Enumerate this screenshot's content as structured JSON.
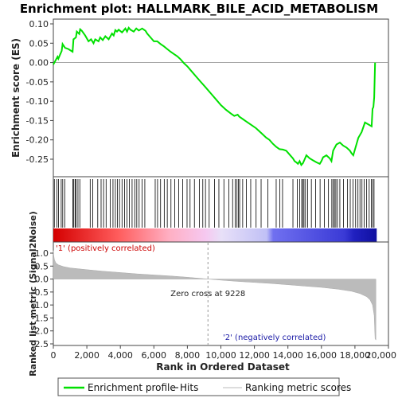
{
  "chart_data": {
    "type": "line",
    "title": "Enrichment plot: HALLMARK_BILE_ACID_METABOLISM",
    "es_panel": {
      "ylabel": "Enrichment score (ES)",
      "ylim": [
        -0.3,
        0.1
      ],
      "yticks": [
        "0.10",
        "0.05",
        "0.00",
        "-0.05",
        "-0.10",
        "-0.15",
        "-0.20",
        "-0.25"
      ],
      "ytick_values": [
        0.1,
        0.05,
        0.0,
        -0.05,
        -0.1,
        -0.15,
        -0.2,
        -0.25
      ],
      "series": [
        {
          "name": "Enrichment profile",
          "color": "#00e000",
          "x": [
            0,
            250,
            300,
            500,
            550,
            700,
            900,
            1150,
            1200,
            1350,
            1400,
            1550,
            1600,
            1700,
            1900,
            2100,
            2250,
            2400,
            2500,
            2700,
            2800,
            2950,
            3100,
            3300,
            3500,
            3600,
            3700,
            3800,
            3900,
            4100,
            4300,
            4400,
            4500,
            4600,
            4800,
            4950,
            5100,
            5300,
            5500,
            5600,
            5800,
            6000,
            6200,
            6400,
            6600,
            6800,
            7000,
            7200,
            7400,
            7600,
            7800,
            8000,
            8200,
            8500,
            8800,
            9100,
            9400,
            9700,
            10000,
            10300,
            10600,
            10800,
            11000,
            11100,
            11300,
            11500,
            11700,
            11900,
            12100,
            12300,
            12500,
            12700,
            12900,
            13100,
            13300,
            13500,
            13700,
            13900,
            14100,
            14300,
            14400,
            14500,
            14600,
            14700,
            14800,
            14900,
            15000,
            15100,
            15300,
            15500,
            15700,
            15900,
            16000,
            16100,
            16300,
            16500,
            16600,
            16700,
            16800,
            16900,
            17100,
            17300,
            17500,
            17700,
            17800,
            17900,
            18100,
            18200,
            18400,
            18600,
            18800,
            19000,
            19050,
            19100,
            19150,
            19200
          ],
          "y": [
            -0.005,
            0.015,
            0.01,
            0.03,
            0.048,
            0.038,
            0.035,
            0.028,
            0.06,
            0.065,
            0.08,
            0.074,
            0.086,
            0.082,
            0.07,
            0.055,
            0.06,
            0.05,
            0.06,
            0.055,
            0.065,
            0.058,
            0.068,
            0.06,
            0.075,
            0.07,
            0.084,
            0.08,
            0.085,
            0.078,
            0.088,
            0.08,
            0.09,
            0.085,
            0.08,
            0.088,
            0.083,
            0.088,
            0.082,
            0.075,
            0.065,
            0.055,
            0.055,
            0.048,
            0.042,
            0.035,
            0.028,
            0.022,
            0.016,
            0.008,
            -0.002,
            -0.01,
            -0.02,
            -0.035,
            -0.05,
            -0.065,
            -0.08,
            -0.095,
            -0.11,
            -0.122,
            -0.132,
            -0.138,
            -0.135,
            -0.14,
            -0.146,
            -0.152,
            -0.158,
            -0.164,
            -0.17,
            -0.178,
            -0.186,
            -0.194,
            -0.2,
            -0.21,
            -0.218,
            -0.224,
            -0.225,
            -0.228,
            -0.238,
            -0.248,
            -0.255,
            -0.258,
            -0.262,
            -0.255,
            -0.265,
            -0.26,
            -0.25,
            -0.24,
            -0.248,
            -0.253,
            -0.258,
            -0.262,
            -0.255,
            -0.245,
            -0.24,
            -0.248,
            -0.255,
            -0.228,
            -0.22,
            -0.212,
            -0.207,
            -0.215,
            -0.22,
            -0.228,
            -0.235,
            -0.24,
            -0.21,
            -0.195,
            -0.18,
            -0.155,
            -0.16,
            -0.165,
            -0.12,
            -0.115,
            -0.09,
            0.0
          ]
        }
      ]
    },
    "hits_panel": {
      "legend": "Hits",
      "hit_ranks": [
        60,
        210,
        310,
        470,
        560,
        680,
        1160,
        1220,
        1300,
        1360,
        1470,
        1580,
        2200,
        2350,
        2650,
        2850,
        3000,
        3150,
        3400,
        3560,
        3700,
        3820,
        3950,
        4100,
        4250,
        4400,
        4540,
        4700,
        4860,
        4980,
        5120,
        5300,
        5460,
        6080,
        6220,
        6400,
        6620,
        6800,
        7020,
        7250,
        7480,
        7720,
        7980,
        8160,
        8420,
        8720,
        8920,
        9080,
        9300,
        9620,
        9880,
        10180,
        10480,
        10700,
        10860,
        10960,
        11040,
        11120,
        11300,
        11520,
        11780,
        12100,
        12400,
        12800,
        13300,
        13520,
        13680,
        14300,
        14560,
        14700,
        14820,
        14900,
        14960,
        15050,
        15180,
        15400,
        15650,
        15920,
        16180,
        16420,
        16620,
        16700,
        16780,
        16860,
        16950,
        17100,
        17320,
        17560,
        17720,
        17880,
        18040,
        18180,
        18300,
        18420,
        18550,
        18700,
        18850,
        18980,
        19060,
        19140
      ]
    },
    "ranking_panel": {
      "ylabel": "Ranked list metric (Signal2Noise)",
      "xlabel": "Rank in Ordered Dataset",
      "ylim": [
        -2.5,
        1.25
      ],
      "yticks": [
        "1.0",
        "0.5",
        "0.0",
        "-0.5",
        "-1.0",
        "-1.5",
        "-2.0",
        "-2.5"
      ],
      "ytick_values": [
        1.0,
        0.5,
        0.0,
        -0.5,
        -1.0,
        -1.5,
        -2.0,
        -2.5
      ],
      "xlim": [
        0,
        20000
      ],
      "xticks": [
        "0",
        "2,000",
        "4,000",
        "6,000",
        "8,000",
        "10,000",
        "12,000",
        "14,000",
        "16,000",
        "18,000",
        "20,000"
      ],
      "xtick_values": [
        0,
        2000,
        4000,
        6000,
        8000,
        10000,
        12000,
        14000,
        16000,
        18000,
        20000
      ],
      "metric_profile": {
        "x": [
          0,
          20,
          60,
          150,
          300,
          600,
          1000,
          2000,
          3000,
          4000,
          5000,
          6000,
          7000,
          8000,
          9228,
          10000,
          11000,
          12000,
          13000,
          14000,
          15000,
          16000,
          17000,
          17800,
          18300,
          18700,
          18900,
          19050,
          19150,
          19200,
          19250
        ],
        "y": [
          1.1,
          0.95,
          0.75,
          0.62,
          0.55,
          0.48,
          0.43,
          0.36,
          0.3,
          0.25,
          0.2,
          0.16,
          0.12,
          0.07,
          0.0,
          -0.04,
          -0.09,
          -0.13,
          -0.17,
          -0.22,
          -0.27,
          -0.32,
          -0.39,
          -0.47,
          -0.56,
          -0.68,
          -0.8,
          -1.0,
          -1.4,
          -2.3,
          -2.35
        ]
      },
      "zero_cross_label": "Zero cross at 9228",
      "zero_cross": 9228,
      "pos_label": "'1' (positively correlated)",
      "neg_label": "'2' (negatively correlated)",
      "pos_color": "#cc0000",
      "neg_color": "#1a1aa6"
    },
    "total_ranks": 19300,
    "legend": [
      {
        "label": "Enrichment profile",
        "color": "#00e000"
      },
      {
        "label": "Hits",
        "color": "#000000"
      },
      {
        "label": "Ranking metric scores",
        "color": "#bbbbbb"
      }
    ],
    "legend_placement": "bottom",
    "grid": false
  }
}
